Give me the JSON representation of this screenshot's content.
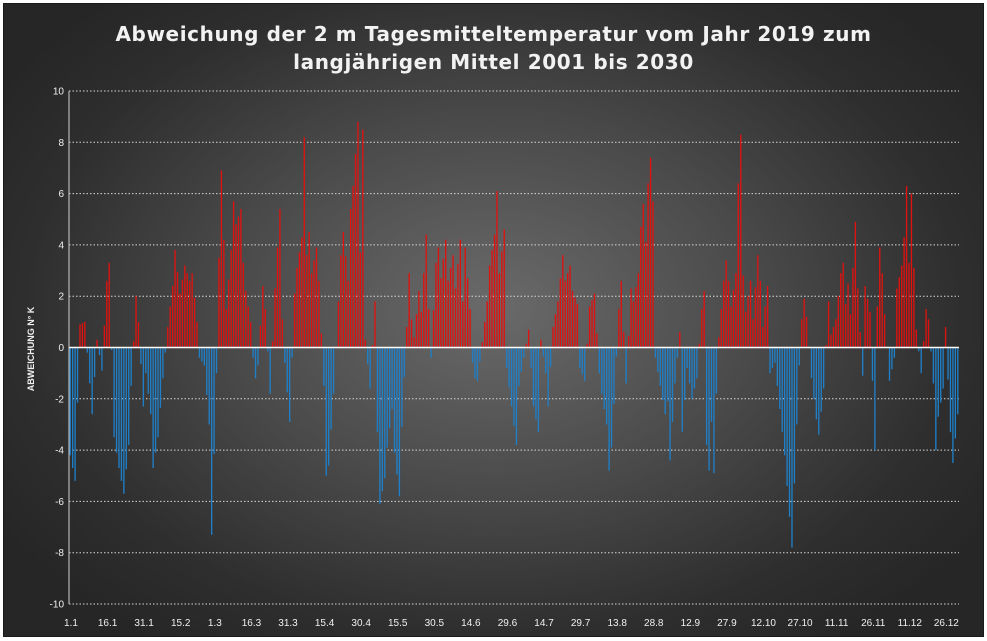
{
  "chart_data": {
    "type": "bar",
    "title_line1": "Abweichung der 2 m Tagesmitteltemperatur  vom Jahr 2019 zum",
    "title_line2": "langjährigen Mittel 2001 bis 2030",
    "xlabel": "",
    "ylabel": "ABWEICHUNG N° K",
    "ylim": [
      -10,
      10
    ],
    "y_ticks": [
      10,
      8,
      6,
      4,
      2,
      0,
      -2,
      -4,
      -6,
      -8,
      -10
    ],
    "x_tick_labels": [
      "1.1",
      "16.1",
      "31.1",
      "15.2",
      "1.3",
      "16.3",
      "31.3",
      "15.4",
      "30.4",
      "15.5",
      "30.5",
      "14.6",
      "29.6",
      "14.7",
      "29.7",
      "13.8",
      "28.8",
      "12.9",
      "27.9",
      "12.10",
      "27.10",
      "11.11",
      "26.11",
      "11.12",
      "26.12"
    ],
    "x_tick_day_index": [
      0,
      15,
      30,
      45,
      59,
      74,
      89,
      104,
      119,
      134,
      149,
      164,
      179,
      194,
      209,
      224,
      239,
      254,
      269,
      284,
      299,
      314,
      329,
      344,
      359
    ],
    "grid": "horizontal dotted",
    "colors": {
      "positive": "#e0120f",
      "negative": "#1f7fc8",
      "zero_line": "#ffffff",
      "grid": "#d8d8d8"
    },
    "anchors": [
      [
        0,
        -4.2
      ],
      [
        2,
        -5.2
      ],
      [
        4,
        0.9
      ],
      [
        6,
        1.0
      ],
      [
        9,
        -2.6
      ],
      [
        11,
        0.3
      ],
      [
        13,
        -0.9
      ],
      [
        15,
        2.6
      ],
      [
        16,
        3.3
      ],
      [
        18,
        -3.5
      ],
      [
        20,
        -4.7
      ],
      [
        22,
        -5.7
      ],
      [
        24,
        -3.8
      ],
      [
        25,
        -1.5
      ],
      [
        27,
        2.0
      ],
      [
        28,
        1.0
      ],
      [
        30,
        -2.3
      ],
      [
        31,
        -1.0
      ],
      [
        33,
        -2.6
      ],
      [
        34,
        -4.7
      ],
      [
        36,
        -3.5
      ],
      [
        38,
        -1.2
      ],
      [
        40,
        0.8
      ],
      [
        42,
        2.4
      ],
      [
        43,
        3.8
      ],
      [
        45,
        2.1
      ],
      [
        47,
        3.2
      ],
      [
        49,
        2.6
      ],
      [
        50,
        2.9
      ],
      [
        52,
        1.0
      ],
      [
        53,
        -0.4
      ],
      [
        55,
        -0.7
      ],
      [
        57,
        -3.0
      ],
      [
        58,
        -7.3
      ],
      [
        60,
        -1.0
      ],
      [
        61,
        3.5
      ],
      [
        62,
        6.9
      ],
      [
        63,
        4.2
      ],
      [
        64,
        1.5
      ],
      [
        66,
        3.8
      ],
      [
        67,
        5.7
      ],
      [
        68,
        4.8
      ],
      [
        70,
        5.4
      ],
      [
        71,
        3.3
      ],
      [
        72,
        2.2
      ],
      [
        74,
        1.0
      ],
      [
        75,
        -0.4
      ],
      [
        76,
        -1.2
      ],
      [
        77,
        -0.7
      ],
      [
        79,
        2.4
      ],
      [
        80,
        1.5
      ],
      [
        82,
        -1.8
      ],
      [
        84,
        2.3
      ],
      [
        85,
        3.9
      ],
      [
        86,
        5.4
      ],
      [
        87,
        1.1
      ],
      [
        88,
        -0.6
      ],
      [
        90,
        -2.9
      ],
      [
        92,
        2.1
      ],
      [
        93,
        3.1
      ],
      [
        95,
        4.3
      ],
      [
        96,
        8.2
      ],
      [
        97,
        3.6
      ],
      [
        98,
        4.5
      ],
      [
        99,
        2.9
      ],
      [
        101,
        3.9
      ],
      [
        102,
        2.6
      ],
      [
        104,
        -1.5
      ],
      [
        105,
        -5.0
      ],
      [
        106,
        -4.6
      ],
      [
        108,
        -1.8
      ],
      [
        110,
        1.8
      ],
      [
        111,
        3.6
      ],
      [
        112,
        4.5
      ],
      [
        114,
        2.6
      ],
      [
        115,
        5.4
      ],
      [
        116,
        6.3
      ],
      [
        118,
        8.8
      ],
      [
        119,
        3.7
      ],
      [
        120,
        8.5
      ],
      [
        121,
        0.3
      ],
      [
        123,
        -1.6
      ],
      [
        125,
        1.8
      ],
      [
        126,
        -3.3
      ],
      [
        127,
        -6.1
      ],
      [
        129,
        -5.1
      ],
      [
        130,
        -3.9
      ],
      [
        132,
        -2.4
      ],
      [
        133,
        -4.1
      ],
      [
        135,
        -5.8
      ],
      [
        136,
        -3.1
      ],
      [
        138,
        0.8
      ],
      [
        139,
        2.9
      ],
      [
        140,
        1.1
      ],
      [
        141,
        0.4
      ],
      [
        143,
        2.2
      ],
      [
        144,
        1.4
      ],
      [
        146,
        4.4
      ],
      [
        147,
        1.5
      ],
      [
        148,
        -0.4
      ],
      [
        150,
        3.3
      ],
      [
        151,
        3.9
      ],
      [
        152,
        2.7
      ],
      [
        154,
        4.2
      ],
      [
        155,
        2.6
      ],
      [
        157,
        3.6
      ],
      [
        158,
        2.3
      ],
      [
        160,
        4.2
      ],
      [
        161,
        1.8
      ],
      [
        162,
        3.9
      ],
      [
        164,
        1.5
      ],
      [
        165,
        -0.6
      ],
      [
        166,
        -1.2
      ],
      [
        167,
        -1.3
      ],
      [
        169,
        0.2
      ],
      [
        171,
        1.8
      ],
      [
        172,
        3.2
      ],
      [
        174,
        4.4
      ],
      [
        175,
        6.1
      ],
      [
        176,
        2.9
      ],
      [
        178,
        4.6
      ],
      [
        179,
        -0.8
      ],
      [
        181,
        -2.3
      ],
      [
        183,
        -3.8
      ],
      [
        184,
        -1.5
      ],
      [
        186,
        -0.4
      ],
      [
        188,
        0.7
      ],
      [
        190,
        -2.3
      ],
      [
        192,
        -3.3
      ],
      [
        193,
        0.3
      ],
      [
        195,
        -1.0
      ],
      [
        196,
        -2.3
      ],
      [
        198,
        0.8
      ],
      [
        200,
        1.8
      ],
      [
        202,
        3.6
      ],
      [
        203,
        2.6
      ],
      [
        205,
        3.2
      ],
      [
        206,
        2.2
      ],
      [
        208,
        1.7
      ],
      [
        209,
        -0.8
      ],
      [
        211,
        -1.3
      ],
      [
        213,
        1.6
      ],
      [
        215,
        2.1
      ],
      [
        217,
        -1.0
      ],
      [
        218,
        -1.8
      ],
      [
        220,
        -3.0
      ],
      [
        221,
        -4.8
      ],
      [
        222,
        -3.9
      ],
      [
        223,
        -2.2
      ],
      [
        225,
        1.5
      ],
      [
        226,
        2.6
      ],
      [
        228,
        -1.4
      ],
      [
        230,
        2.3
      ],
      [
        231,
        1.8
      ],
      [
        233,
        2.9
      ],
      [
        234,
        4.7
      ],
      [
        235,
        5.6
      ],
      [
        236,
        4.1
      ],
      [
        237,
        6.4
      ],
      [
        238,
        7.4
      ],
      [
        239,
        5.7
      ],
      [
        240,
        -0.4
      ],
      [
        242,
        -1.5
      ],
      [
        244,
        -2.6
      ],
      [
        245,
        -2.1
      ],
      [
        246,
        -4.4
      ],
      [
        248,
        -1.4
      ],
      [
        250,
        0.6
      ],
      [
        251,
        -3.3
      ],
      [
        253,
        -0.8
      ],
      [
        255,
        -2.0
      ],
      [
        257,
        -1.2
      ],
      [
        259,
        1.5
      ],
      [
        260,
        2.2
      ],
      [
        261,
        -3.8
      ],
      [
        262,
        -4.8
      ],
      [
        263,
        -2.9
      ],
      [
        264,
        -4.9
      ],
      [
        265,
        -1.8
      ],
      [
        266,
        0.4
      ],
      [
        268,
        2.6
      ],
      [
        269,
        3.4
      ],
      [
        270,
        2.6
      ],
      [
        271,
        1.6
      ],
      [
        273,
        2.9
      ],
      [
        274,
        6.4
      ],
      [
        275,
        8.3
      ],
      [
        276,
        2.8
      ],
      [
        277,
        1.4
      ],
      [
        279,
        2.6
      ],
      [
        280,
        1.1
      ],
      [
        282,
        3.6
      ],
      [
        283,
        2.6
      ],
      [
        284,
        0.8
      ],
      [
        286,
        2.4
      ],
      [
        287,
        -1.0
      ],
      [
        289,
        -0.6
      ],
      [
        291,
        -2.4
      ],
      [
        293,
        -4.2
      ],
      [
        295,
        -6.6
      ],
      [
        296,
        -7.8
      ],
      [
        297,
        -5.3
      ],
      [
        299,
        -0.7
      ],
      [
        300,
        1.1
      ],
      [
        301,
        1.9
      ],
      [
        302,
        1.2
      ],
      [
        304,
        -1.2
      ],
      [
        306,
        -2.8
      ],
      [
        307,
        -3.4
      ],
      [
        309,
        -1.6
      ],
      [
        311,
        1.8
      ],
      [
        312,
        0.5
      ],
      [
        314,
        1.1
      ],
      [
        316,
        2.9
      ],
      [
        317,
        3.3
      ],
      [
        318,
        1.7
      ],
      [
        319,
        2.5
      ],
      [
        320,
        1.3
      ],
      [
        322,
        4.9
      ],
      [
        323,
        2.3
      ],
      [
        325,
        -1.1
      ],
      [
        326,
        2.4
      ],
      [
        328,
        1.4
      ],
      [
        330,
        -4.0
      ],
      [
        331,
        1.6
      ],
      [
        332,
        3.9
      ],
      [
        333,
        2.9
      ],
      [
        334,
        1.3
      ],
      [
        336,
        -1.3
      ],
      [
        338,
        -0.4
      ],
      [
        339,
        2.3
      ],
      [
        341,
        3.2
      ],
      [
        342,
        4.3
      ],
      [
        343,
        6.3
      ],
      [
        344,
        3.3
      ],
      [
        345,
        6.0
      ],
      [
        346,
        3.1
      ],
      [
        347,
        0.7
      ],
      [
        349,
        -1.0
      ],
      [
        351,
        1.5
      ],
      [
        352,
        1.1
      ],
      [
        354,
        -1.4
      ],
      [
        355,
        -4.0
      ],
      [
        356,
        -2.7
      ],
      [
        358,
        -1.6
      ],
      [
        359,
        0.8
      ],
      [
        361,
        -3.3
      ],
      [
        362,
        -4.5
      ],
      [
        364,
        -2.6
      ]
    ]
  }
}
